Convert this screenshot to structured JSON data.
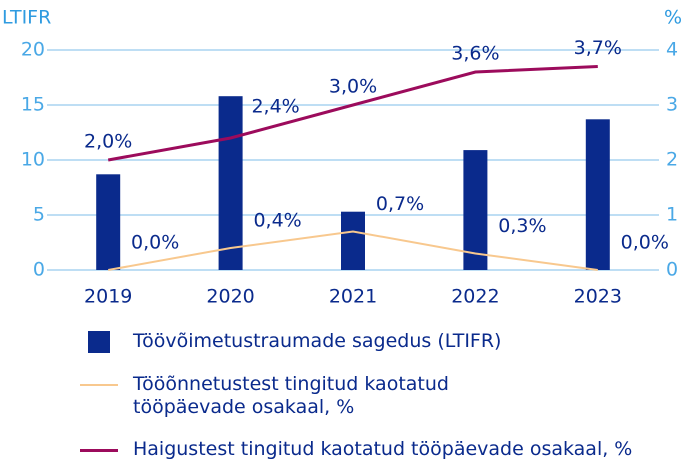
{
  "chart_data": {
    "type": "bar-line",
    "y_label": "LTIFR",
    "y2_label": "%",
    "categories": [
      "2019",
      "2020",
      "2021",
      "2022",
      "2023"
    ],
    "ylim": [
      0,
      20
    ],
    "yticks": [
      0,
      5,
      10,
      15,
      20
    ],
    "y2lim": [
      0,
      4
    ],
    "y2ticks": [
      0,
      1,
      2,
      3,
      4
    ],
    "grid": true,
    "series": [
      {
        "name": "Töövõimetustraumade sagedus (LTIFR)",
        "type": "bar",
        "color": "#0a2a8c",
        "values": [
          8.7,
          15.8,
          5.3,
          10.9,
          13.7
        ]
      },
      {
        "name": "Tööõnnetustest tingitud kaotatud tööpäevade osakaal, %",
        "type": "line",
        "axis": "y2",
        "color": "#f8c88e",
        "values": [
          0.0,
          0.4,
          0.7,
          0.3,
          0.0
        ],
        "value_labels": [
          "0,0%",
          "0,4%",
          "0,7%",
          "0,3%",
          "0,0%"
        ]
      },
      {
        "name": "Haigustest tingitud kaotatud tööpäevade osakaal, %",
        "type": "line",
        "axis": "y2",
        "color": "#9c0b5c",
        "values": [
          2.0,
          2.4,
          3.0,
          3.6,
          3.7
        ],
        "value_labels": [
          "2,0%",
          "2,4%",
          "3,0%",
          "3,6%",
          "3,7%"
        ]
      }
    ]
  }
}
